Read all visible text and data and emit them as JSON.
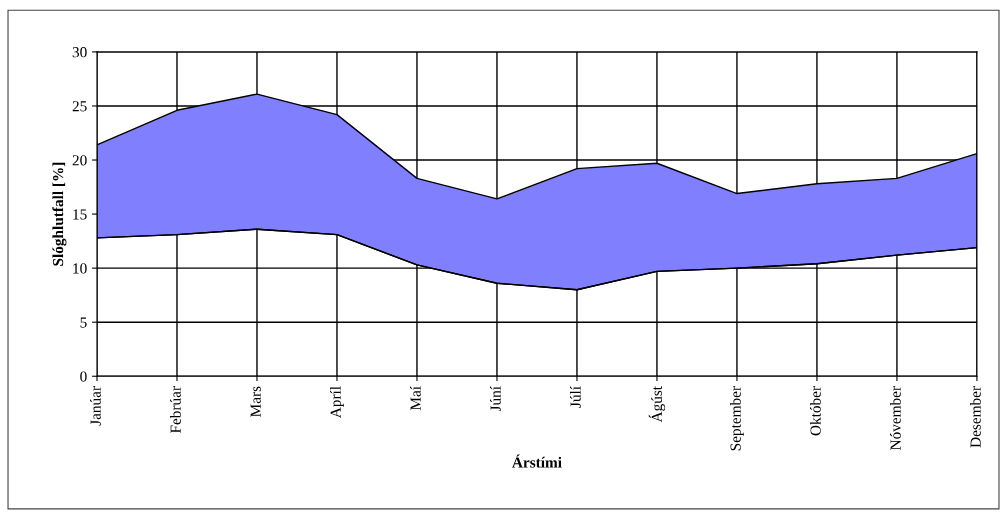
{
  "chart_data": {
    "type": "area",
    "xlabel": "Árstími",
    "ylabel": "Slóghlutfall [%]",
    "categories": [
      "Janúar",
      "Febrúar",
      "Mars",
      "Apríl",
      "Maí",
      "Júní",
      "Júlí",
      "Ágúst",
      "September",
      "Október",
      "Nóvember",
      "Desember"
    ],
    "series": [
      {
        "type": "line",
        "color": "#000000",
        "values": [
          12.8,
          13.1,
          13.6,
          13.1,
          10.3,
          8.6,
          8.0,
          9.7,
          10.0,
          10.4,
          11.2,
          11.9
        ]
      },
      {
        "color": "#8080ff",
        "values": [
          21.4,
          24.6,
          26.1,
          24.2,
          18.3,
          16.4,
          19.2,
          19.7,
          16.9,
          17.8,
          18.3,
          20.6
        ]
      }
    ],
    "ylim": [
      0,
      30
    ],
    "yticks": [
      0,
      5,
      10,
      15,
      20,
      25,
      30
    ],
    "grid": true
  }
}
